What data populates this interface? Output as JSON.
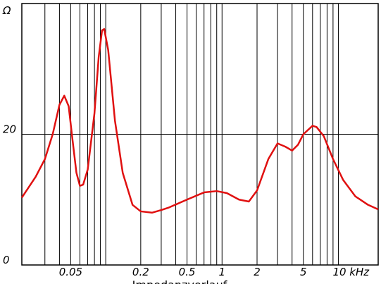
{
  "chart_data": {
    "type": "line",
    "title": "Impedanzverlauf",
    "ylabel": "Ω",
    "log_x": true,
    "xlim": [
      0.019,
      22
    ],
    "ylim": [
      0,
      40
    ],
    "xticks": [
      0.05,
      0.2,
      0.5,
      1,
      2,
      5,
      {
        "value": 10,
        "label": "10 kHz"
      }
    ],
    "xminor": [
      0.03,
      0.04,
      0.06,
      0.07,
      0.08,
      0.09,
      0.1,
      0.3,
      0.4,
      0.6,
      0.7,
      0.8,
      0.9,
      3,
      4,
      6,
      7,
      8,
      9
    ],
    "yticks": [
      0,
      20
    ],
    "grid": true,
    "x": [
      0.019,
      0.025,
      0.03,
      0.035,
      0.04,
      0.044,
      0.048,
      0.052,
      0.056,
      0.06,
      0.064,
      0.07,
      0.08,
      0.087,
      0.093,
      0.097,
      0.105,
      0.12,
      0.14,
      0.17,
      0.2,
      0.25,
      0.3,
      0.35,
      0.5,
      0.7,
      0.9,
      1.1,
      1.4,
      1.7,
      2,
      2.5,
      3,
      3.5,
      4,
      4.5,
      5,
      6,
      6.5,
      7.5,
      9,
      11,
      14,
      18,
      22
    ],
    "series": [
      {
        "color": "#e01010",
        "values": [
          10.3,
          13.5,
          16.2,
          20,
          24.5,
          25.9,
          24.3,
          18.9,
          14.1,
          12.1,
          12.3,
          14.6,
          23.2,
          31.8,
          35.9,
          36.1,
          32.9,
          22.1,
          14.1,
          9.2,
          8.2,
          8.0,
          8.4,
          8.8,
          10.0,
          11.1,
          11.3,
          11.0,
          10.0,
          9.7,
          11.4,
          16.2,
          18.6,
          18.1,
          17.5,
          18.4,
          20.0,
          21.3,
          21.1,
          19.7,
          16.2,
          13.0,
          10.5,
          9.2,
          8.5
        ]
      }
    ]
  }
}
